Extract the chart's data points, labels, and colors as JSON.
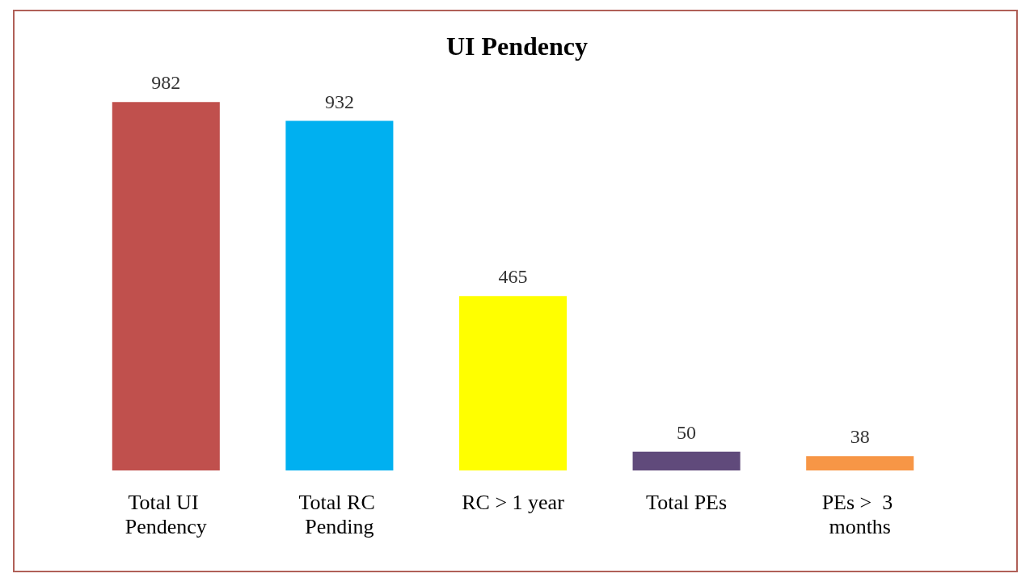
{
  "chart_data": {
    "type": "bar",
    "title": "UI Pendency",
    "categories": [
      "Total UI Pendency",
      "Total RC Pending",
      "RC > 1 year",
      "Total PEs",
      "PEs >  3 months"
    ],
    "values": [
      982,
      932,
      465,
      50,
      38
    ],
    "colors": [
      "#c0504d",
      "#00b0f0",
      "#ffff00",
      "#604a7b",
      "#f79646"
    ],
    "data_labels": true
  }
}
